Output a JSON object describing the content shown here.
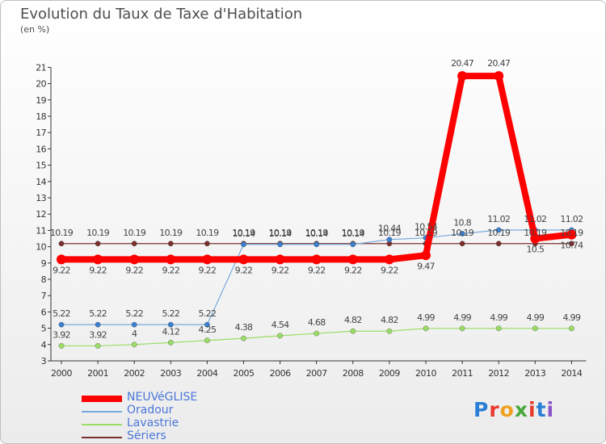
{
  "title": "Evolution du Taux de Taxe d'Habitation",
  "subtitle": "(en %)",
  "logo": {
    "text": "Proxiti",
    "colors": [
      "#2a7fd4",
      "#e8392d",
      "#f0a020",
      "#47a83a",
      "#e8392d",
      "#2a7fd4",
      "#8a56c8"
    ]
  },
  "chart_data": {
    "type": "line",
    "title": "Evolution du Taux de Taxe d'Habitation",
    "ylabel": "(en %)",
    "ylim": [
      3,
      21
    ],
    "yticks": [
      3,
      4,
      5,
      6,
      7,
      8,
      9,
      10,
      11,
      12,
      13,
      14,
      15,
      16,
      17,
      18,
      19,
      20,
      21
    ],
    "x": [
      "2000",
      "2001",
      "2002",
      "2003",
      "2004",
      "2005",
      "2006",
      "2007",
      "2008",
      "2009",
      "2010",
      "2011",
      "2012",
      "2013",
      "2014"
    ],
    "grid": false,
    "legend": "bottom-left",
    "series": [
      {
        "name": "Sériers",
        "color": "#7a2f2f",
        "values": [
          10.19,
          10.19,
          10.19,
          10.19,
          10.19,
          10.19,
          10.19,
          10.19,
          10.19,
          10.19,
          10.19,
          10.19,
          10.19,
          10.19,
          10.19
        ],
        "labels": [
          "10.19",
          "10.19",
          "10.19",
          "10.19",
          "10.19",
          "10.19",
          "10.19",
          "10.19",
          "10.19",
          "10.19",
          "10.19",
          "10.19",
          "10.19",
          "10.19",
          "10.19"
        ]
      },
      {
        "name": "Lavastrie",
        "color": "#99dd66",
        "values": [
          3.92,
          3.92,
          4,
          4.12,
          4.25,
          4.38,
          4.54,
          4.68,
          4.82,
          4.82,
          4.99,
          4.99,
          4.99,
          4.99,
          4.99
        ],
        "labels": [
          "3.92",
          "3.92",
          "4",
          "4.12",
          "4.25",
          "4.38",
          "4.54",
          "4.68",
          "4.82",
          "4.82",
          "4.99",
          "4.99",
          "4.99",
          "4.99",
          "4.99"
        ]
      },
      {
        "name": "Oradour",
        "color": "#77aadd",
        "values": [
          5.22,
          5.22,
          5.22,
          5.22,
          5.22,
          10.14,
          10.14,
          10.14,
          10.14,
          10.44,
          10.54,
          10.8,
          11.02,
          11.02,
          11.02
        ],
        "labels": [
          "5.22",
          "5.22",
          "5.22",
          "5.22",
          "5.22",
          "10.14",
          "10.14",
          "10.14",
          "10.14",
          "10.44",
          "10.54",
          "10.8",
          "11.02",
          "11.02",
          "11.02"
        ]
      },
      {
        "name": "NEUVéGLISE",
        "color": "#ff0000",
        "values": [
          9.22,
          9.22,
          9.22,
          9.22,
          9.22,
          9.22,
          9.22,
          9.22,
          9.22,
          9.22,
          9.47,
          20.47,
          20.47,
          10.5,
          10.74
        ],
        "labels": [
          "9.22",
          "9.22",
          "9.22",
          "9.22",
          "9.22",
          "9.22",
          "9.22",
          "9.22",
          "9.22",
          "9.22",
          "9.47",
          "20.47",
          "20.47",
          "10.5",
          "10.74"
        ]
      }
    ],
    "legend_order": [
      "NEUVéGLISE",
      "Oradour",
      "Lavastrie",
      "Sériers"
    ]
  }
}
